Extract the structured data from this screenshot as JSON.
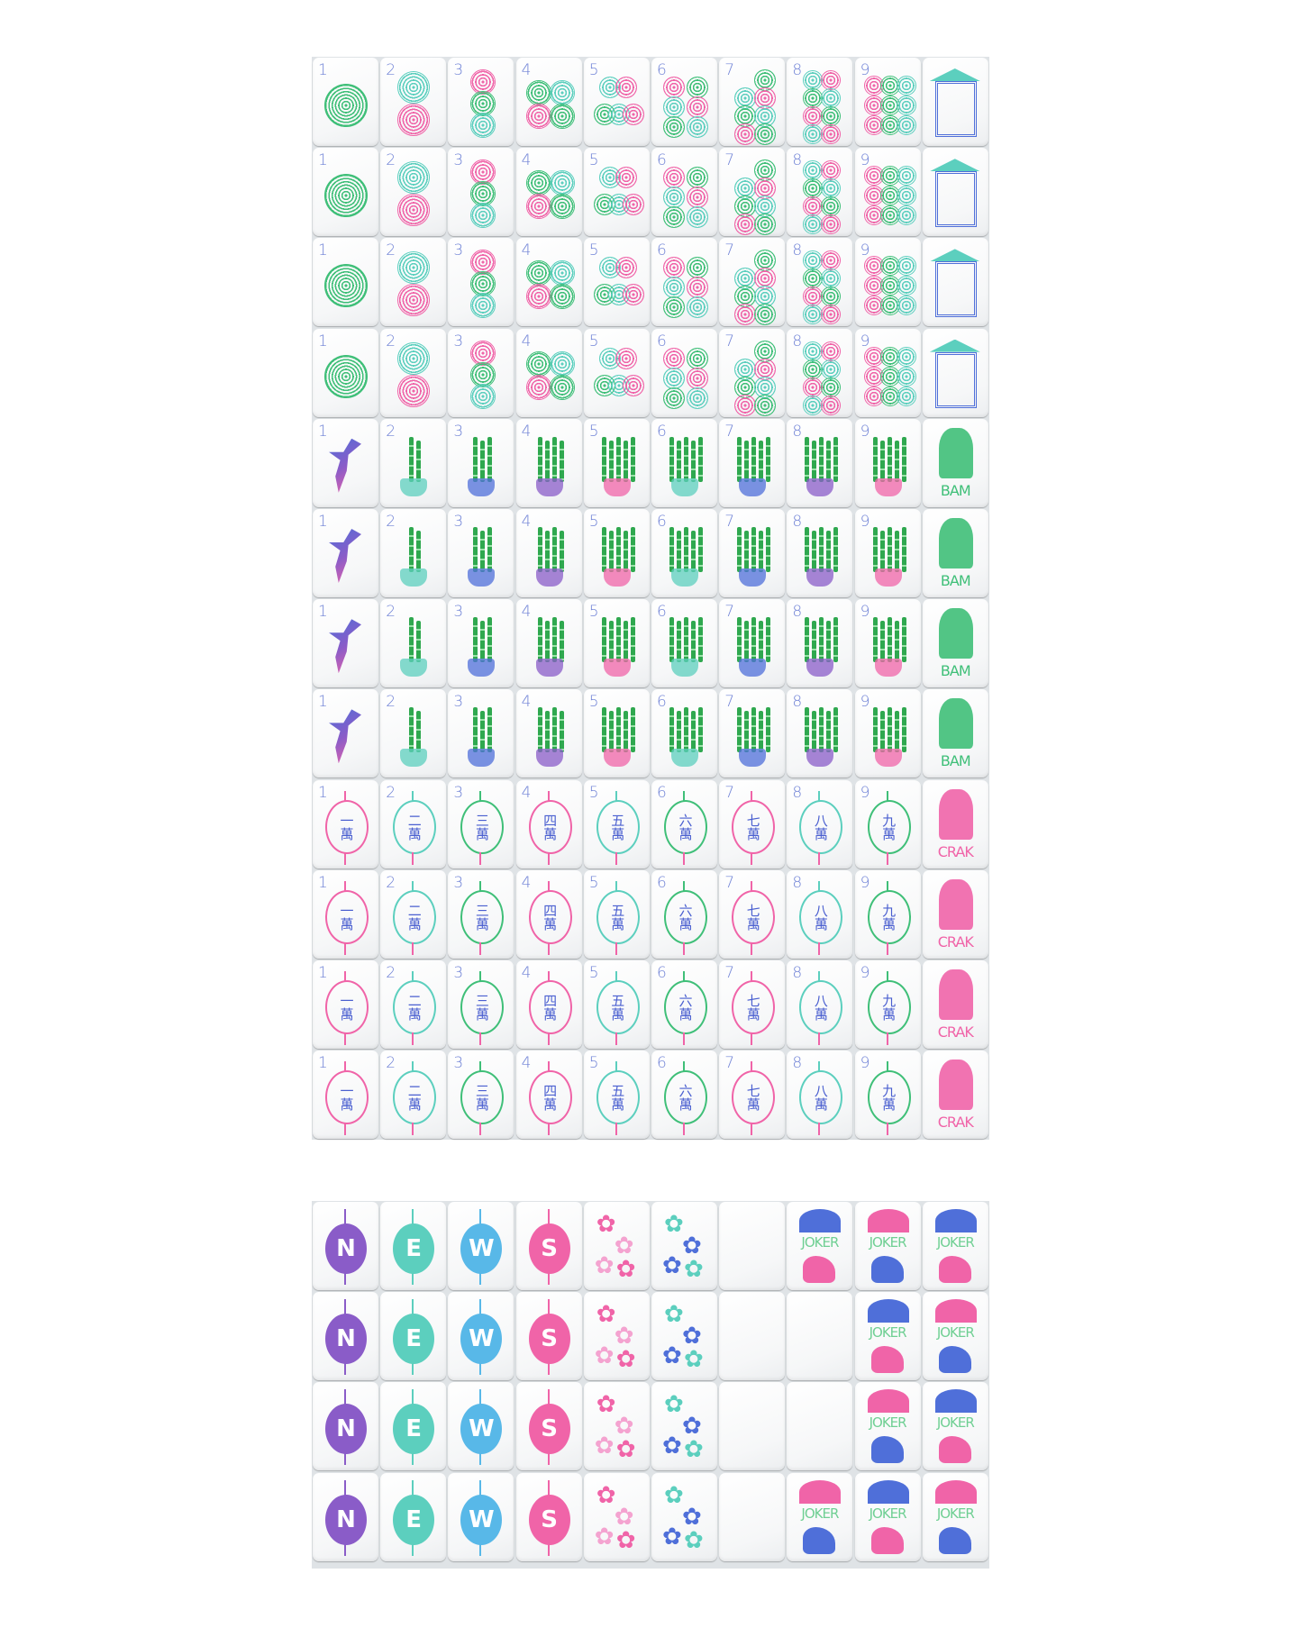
{
  "colors": {
    "green": "#3fbf78",
    "teal": "#5ccfbe",
    "pink": "#f064a8",
    "blue": "#4f6fd9",
    "purple": "#8a5cc8",
    "lightblue": "#58b8e8",
    "numeral": "#6f82d6",
    "board_gap": "#dfe3e6"
  },
  "numerals": [
    "1",
    "2",
    "3",
    "4",
    "5",
    "6",
    "7",
    "8",
    "9"
  ],
  "sections": {
    "top": {
      "suits": [
        {
          "suit": "dots",
          "rows": 4,
          "tiles": [
            "1",
            "2",
            "3",
            "4",
            "5",
            "6",
            "7",
            "8",
            "9"
          ],
          "dragon": {
            "type": "soap",
            "icon": "pagoda-frame-icon",
            "label": ""
          }
        },
        {
          "suit": "bams",
          "rows": 4,
          "tiles": [
            "1",
            "2",
            "3",
            "4",
            "5",
            "6",
            "7",
            "8",
            "9"
          ],
          "one_icon": "hummingbird-icon",
          "dragon": {
            "type": "green-dragon",
            "icon": "dragon-mask-icon",
            "label": "BAM"
          }
        },
        {
          "suit": "craks",
          "rows": 4,
          "tiles": [
            "1",
            "2",
            "3",
            "4",
            "5",
            "6",
            "7",
            "8",
            "9"
          ],
          "characters": [
            "一萬",
            "二萬",
            "三萬",
            "四萬",
            "五萬",
            "六萬",
            "七萬",
            "八萬",
            "九萬"
          ],
          "dragon": {
            "type": "red-dragon",
            "icon": "dragon-mask-icon",
            "label": "CRAK"
          }
        }
      ]
    },
    "bottom": {
      "winds": [
        "N",
        "E",
        "W",
        "S"
      ],
      "rows": [
        [
          "N",
          "E",
          "W",
          "S",
          "flower",
          "flower",
          "blank",
          "joker",
          "joker",
          "joker"
        ],
        [
          "N",
          "E",
          "W",
          "S",
          "flower",
          "flower",
          "blank",
          "blank",
          "joker",
          "joker"
        ],
        [
          "N",
          "E",
          "W",
          "S",
          "flower",
          "flower",
          "blank",
          "blank",
          "joker",
          "joker"
        ],
        [
          "N",
          "E",
          "W",
          "S",
          "flower",
          "flower",
          "blank",
          "joker",
          "joker",
          "joker"
        ]
      ],
      "joker_label": "JOKER",
      "joker_icons": [
        "umbrella-icon",
        "monkey-icon"
      ]
    }
  }
}
